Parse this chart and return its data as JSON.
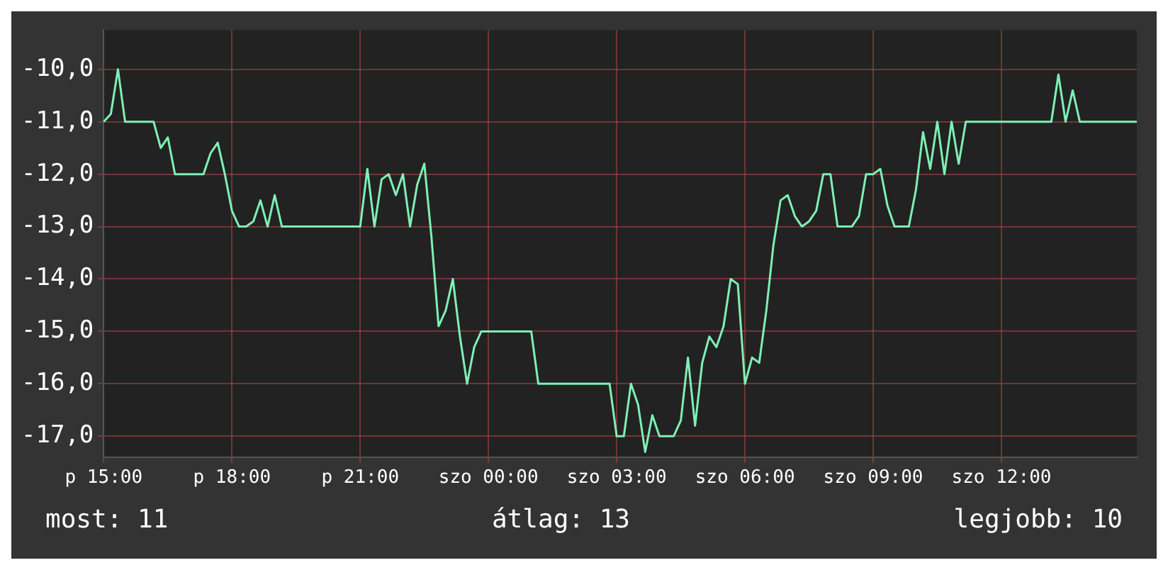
{
  "chart_data": {
    "type": "line",
    "color": "#7ef0b4",
    "categories": [
      "p 15:00",
      null,
      null,
      null,
      null,
      null,
      null,
      null,
      null,
      null,
      null,
      null,
      null,
      null,
      null,
      null,
      null,
      null,
      "p 18:00",
      null,
      null,
      null,
      null,
      null,
      null,
      null,
      null,
      null,
      null,
      null,
      null,
      null,
      null,
      null,
      null,
      null,
      "p 21:00",
      null,
      null,
      null,
      null,
      null,
      null,
      null,
      null,
      null,
      null,
      null,
      null,
      null,
      null,
      null,
      null,
      null,
      "szo 00:00",
      null,
      null,
      null,
      null,
      null,
      null,
      null,
      null,
      null,
      null,
      null,
      null,
      null,
      null,
      null,
      null,
      null,
      "szo 03:00",
      null,
      null,
      null,
      null,
      null,
      null,
      null,
      null,
      null,
      null,
      null,
      null,
      null,
      null,
      null,
      null,
      null,
      "szo 06:00",
      null,
      null,
      null,
      null,
      null,
      null,
      null,
      null,
      null,
      null,
      null,
      null,
      null,
      null,
      null,
      null,
      null,
      "szo 09:00",
      null,
      null,
      null,
      null,
      null,
      null,
      null,
      null,
      null,
      null,
      null,
      null,
      null,
      null,
      null,
      null,
      null,
      "szo 12:00",
      null,
      null,
      null,
      null,
      null,
      null,
      null,
      null,
      null,
      null,
      null,
      null,
      null,
      null,
      null,
      null,
      null,
      null,
      null
    ],
    "values": [
      -11,
      -10.85,
      -10,
      -11,
      -11,
      -11,
      -11,
      -11,
      -11.5,
      -11.3,
      -12,
      -12,
      -12,
      -12,
      -12,
      -11.6,
      -11.4,
      -12,
      -12.7,
      -13,
      -13,
      -12.9,
      -12.5,
      -13,
      -12.4,
      -13,
      -13,
      -13,
      -13,
      -13,
      -13,
      -13,
      -13,
      -13,
      -13,
      -13,
      -13,
      -11.9,
      -13,
      -12.1,
      -12,
      -12.4,
      -12,
      -13,
      -12.2,
      -11.8,
      -13.2,
      -14.9,
      -14.6,
      -14,
      -15.1,
      -16,
      -15.3,
      -15,
      -15,
      -15,
      -15,
      -15,
      -15,
      -15,
      -15,
      -16,
      -16,
      -16,
      -16,
      -16,
      -16,
      -16,
      -16,
      -16,
      -16,
      -16,
      -17,
      -17,
      -16,
      -16.4,
      -17.3,
      -16.6,
      -17,
      -17,
      -17,
      -16.7,
      -15.5,
      -16.8,
      -15.6,
      -15.1,
      -15.3,
      -14.9,
      -14,
      -14.1,
      -16,
      -15.5,
      -15.6,
      -14.6,
      -13.35,
      -12.5,
      -12.4,
      -12.8,
      -13,
      -12.9,
      -12.7,
      -12,
      -12,
      -13,
      -13,
      -13,
      -12.8,
      -12,
      -12,
      -11.9,
      -12.6,
      -13,
      -13,
      -13,
      -12.3,
      -11.2,
      -11.9,
      -11,
      -12,
      -11,
      -11.8,
      -11,
      -11,
      -11,
      -11,
      -11,
      -11,
      -11,
      -11,
      -11,
      -11,
      -11,
      -11,
      -11,
      -10.1,
      -11,
      -10.4,
      -11,
      -11,
      -11,
      -11,
      -11,
      -11,
      -11,
      -11,
      -11
    ],
    "ylim": [
      -17.4,
      -9.25
    ],
    "yticks": [
      {
        "value": -10,
        "label": "-10,0"
      },
      {
        "value": -11,
        "label": "-11,0"
      },
      {
        "value": -12,
        "label": "-12,0"
      },
      {
        "value": -13,
        "label": "-13,0"
      },
      {
        "value": -14,
        "label": "-14,0"
      },
      {
        "value": -15,
        "label": "-15,0"
      },
      {
        "value": -16,
        "label": "-16,0"
      },
      {
        "value": -17,
        "label": "-17,0"
      }
    ],
    "grid": true,
    "marker": "none",
    "line_style": "solid",
    "annotations": [
      "most: 11",
      "átlag: 13",
      "legjobb: 10"
    ]
  }
}
